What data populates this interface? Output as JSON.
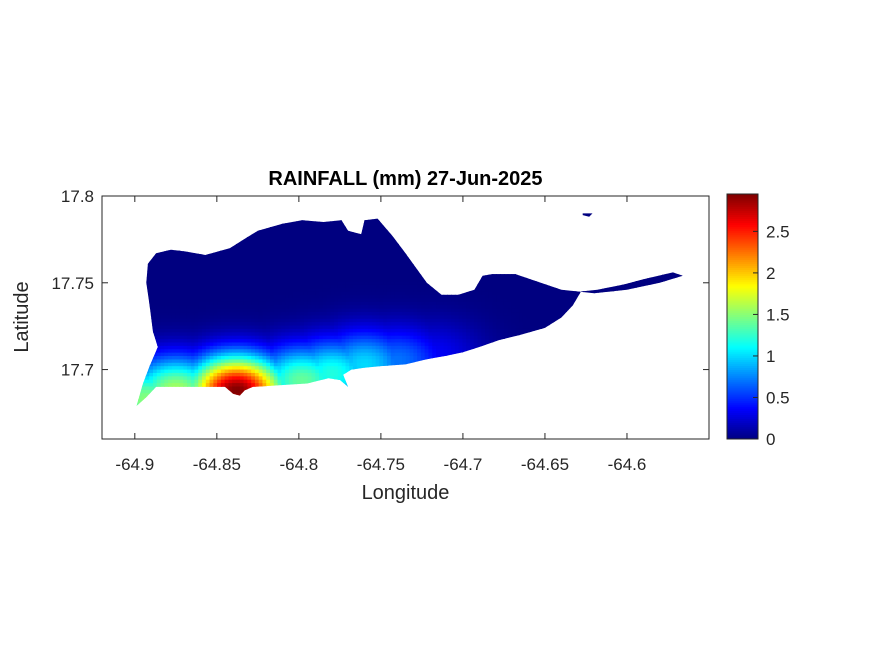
{
  "chart_data": {
    "type": "heatmap",
    "title": "RAINFALL (mm) 27-Jun-2025",
    "xlabel": "Longitude",
    "ylabel": "Latitude",
    "xlim": [
      -64.92,
      -64.55
    ],
    "ylim": [
      17.66,
      17.8
    ],
    "xticks": [
      -64.9,
      -64.85,
      -64.8,
      -64.75,
      -64.7,
      -64.65,
      -64.6
    ],
    "xtick_labels": [
      "-64.9",
      "-64.85",
      "-64.8",
      "-64.75",
      "-64.7",
      "-64.65",
      "-64.6"
    ],
    "yticks": [
      17.7,
      17.75,
      17.8
    ],
    "ytick_labels": [
      "17.7",
      "17.75",
      "17.8"
    ],
    "colorbar": {
      "colormap": "jet",
      "range": [
        0,
        2.95
      ],
      "ticks": [
        0,
        0.5,
        1,
        1.5,
        2,
        2.5
      ],
      "tick_labels": [
        "0",
        "0.5",
        "1",
        "1.5",
        "2",
        "2.5"
      ]
    },
    "grid": false,
    "island_outline": [
      [
        -64.899,
        17.679
      ],
      [
        -64.893,
        17.684
      ],
      [
        -64.887,
        17.69
      ],
      [
        -64.88,
        17.69
      ],
      [
        -64.86,
        17.69
      ],
      [
        -64.845,
        17.69
      ],
      [
        -64.84,
        17.686
      ],
      [
        -64.836,
        17.685
      ],
      [
        -64.833,
        17.688
      ],
      [
        -64.828,
        17.69
      ],
      [
        -64.812,
        17.691
      ],
      [
        -64.795,
        17.692
      ],
      [
        -64.782,
        17.695
      ],
      [
        -64.775,
        17.694
      ],
      [
        -64.77,
        17.69
      ],
      [
        -64.773,
        17.697
      ],
      [
        -64.768,
        17.7
      ],
      [
        -64.76,
        17.701
      ],
      [
        -64.75,
        17.702
      ],
      [
        -64.735,
        17.703
      ],
      [
        -64.722,
        17.706
      ],
      [
        -64.71,
        17.708
      ],
      [
        -64.7,
        17.71
      ],
      [
        -64.69,
        17.713
      ],
      [
        -64.678,
        17.717
      ],
      [
        -64.665,
        17.72
      ],
      [
        -64.65,
        17.724
      ],
      [
        -64.64,
        17.73
      ],
      [
        -64.633,
        17.737
      ],
      [
        -64.628,
        17.745
      ],
      [
        -64.618,
        17.746
      ],
      [
        -64.602,
        17.749
      ],
      [
        -64.59,
        17.752
      ],
      [
        -64.572,
        17.756
      ],
      [
        -64.566,
        17.754
      ],
      [
        -64.58,
        17.75
      ],
      [
        -64.6,
        17.746
      ],
      [
        -64.62,
        17.744
      ],
      [
        -64.64,
        17.746
      ],
      [
        -64.668,
        17.755
      ],
      [
        -64.682,
        17.755
      ],
      [
        -64.688,
        17.754
      ],
      [
        -64.693,
        17.746
      ],
      [
        -64.703,
        17.743
      ],
      [
        -64.713,
        17.743
      ],
      [
        -64.722,
        17.75
      ],
      [
        -64.735,
        17.767
      ],
      [
        -64.743,
        17.777
      ],
      [
        -64.752,
        17.787
      ],
      [
        -64.76,
        17.786
      ],
      [
        -64.762,
        17.778
      ],
      [
        -64.77,
        17.78
      ],
      [
        -64.774,
        17.786
      ],
      [
        -64.785,
        17.785
      ],
      [
        -64.798,
        17.786
      ],
      [
        -64.81,
        17.784
      ],
      [
        -64.825,
        17.78
      ],
      [
        -64.832,
        17.776
      ],
      [
        -64.842,
        17.77
      ],
      [
        -64.857,
        17.766
      ],
      [
        -64.869,
        17.768
      ],
      [
        -64.878,
        17.769
      ],
      [
        -64.887,
        17.767
      ],
      [
        -64.892,
        17.761
      ],
      [
        -64.893,
        17.75
      ],
      [
        -64.891,
        17.737
      ],
      [
        -64.889,
        17.722
      ],
      [
        -64.886,
        17.713
      ],
      [
        -64.891,
        17.702
      ],
      [
        -64.895,
        17.692
      ],
      [
        -64.899,
        17.679
      ]
    ],
    "isle_outline": [
      [
        -64.627,
        17.79
      ],
      [
        -64.621,
        17.79
      ],
      [
        -64.623,
        17.788
      ],
      [
        -64.627,
        17.789
      ]
    ],
    "rain_centers": [
      {
        "lon": -64.838,
        "lat": 17.688,
        "value": 2.95
      },
      {
        "lon": -64.875,
        "lat": 17.688,
        "value": 1.6
      },
      {
        "lon": -64.893,
        "lat": 17.683,
        "value": 1.5
      },
      {
        "lon": -64.798,
        "lat": 17.694,
        "value": 1.4
      },
      {
        "lon": -64.78,
        "lat": 17.698,
        "value": 1.2
      },
      {
        "lon": -64.76,
        "lat": 17.703,
        "value": 1.0
      },
      {
        "lon": -64.74,
        "lat": 17.705,
        "value": 0.7
      },
      {
        "lon": -64.718,
        "lat": 17.708,
        "value": 0.35
      }
    ]
  }
}
